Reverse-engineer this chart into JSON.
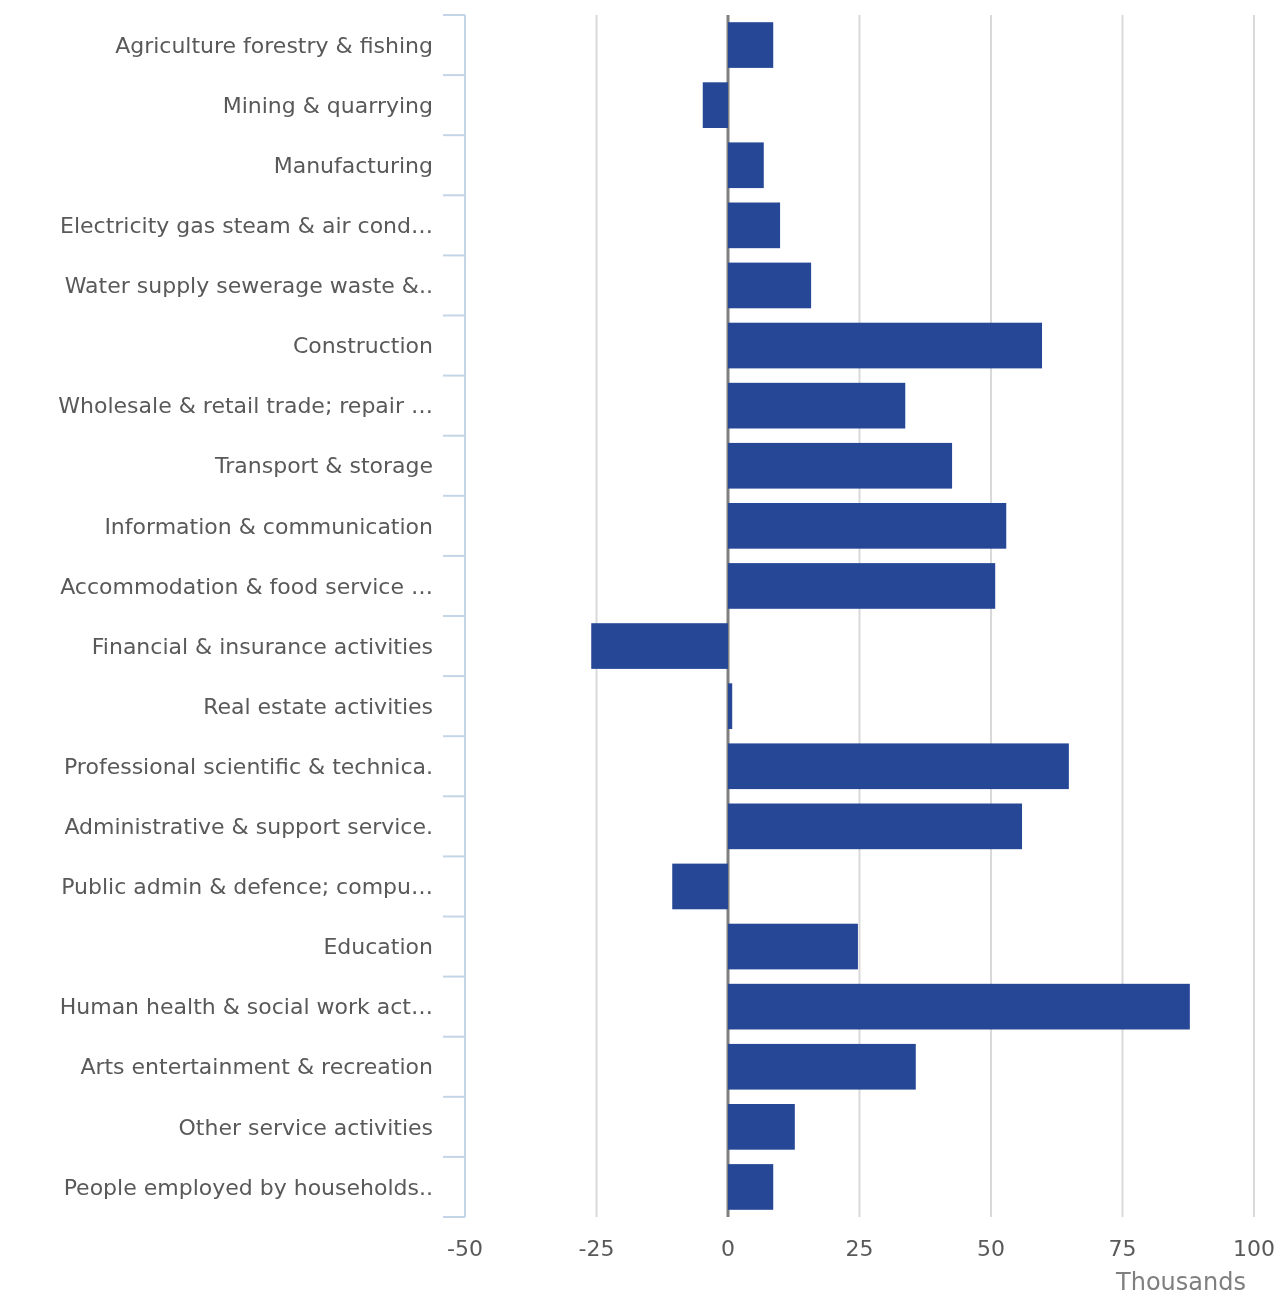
{
  "chart_data": {
    "type": "bar",
    "orientation": "horizontal",
    "xlabel": "Thousands",
    "categories": [
      "Agriculture forestry & fishing",
      "Mining & quarrying",
      "Manufacturing",
      "Electricity gas steam & air cond…",
      "Water supply sewerage waste &..",
      "Construction",
      "Wholesale & retail trade; repair …",
      "Transport & storage",
      "Information & communication",
      "Accommodation & food service …",
      "Financial & insurance activities",
      "Real estate activities",
      "Professional scientific & technica.",
      "Administrative & support service.",
      "Public admin & defence; compu…",
      "Education",
      "Human health & social work act…",
      "Arts entertainment & recreation",
      "Other service activities",
      "People employed by households.."
    ],
    "values": [
      8.6,
      -4.8,
      6.8,
      9.9,
      15.8,
      59.7,
      33.7,
      42.6,
      52.9,
      50.8,
      -26.0,
      0.8,
      64.8,
      55.9,
      -10.6,
      24.7,
      87.8,
      35.7,
      12.7,
      8.6
    ],
    "color": "#264796",
    "xlim": [
      -50,
      100
    ],
    "xticks": [
      -50,
      -25,
      0,
      25,
      50,
      75,
      100
    ],
    "grid": "x"
  }
}
